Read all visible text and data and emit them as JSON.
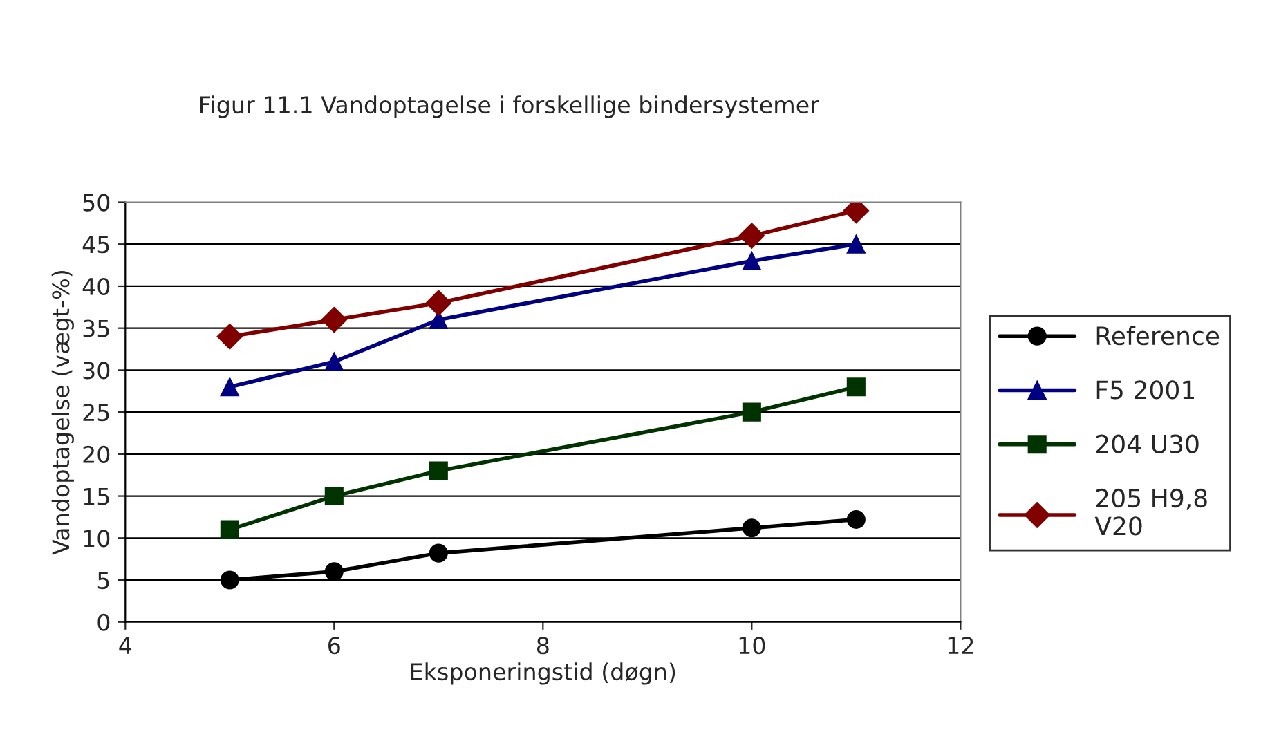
{
  "chart_data": {
    "type": "line",
    "title": "Figur 11.1 Vandoptagelse i forskellige bindersystemer",
    "xlabel": "Eksponeringstid (døgn)",
    "ylabel": "Vandoptagelse (vægt-%)",
    "x": [
      5,
      6,
      7,
      10,
      11
    ],
    "series": [
      {
        "name": "Reference",
        "color": "#000000",
        "marker": "circle",
        "values": [
          5,
          6,
          8.2,
          11.2,
          12.2
        ]
      },
      {
        "name": "F5 2001",
        "color": "#000080",
        "marker": "triangle",
        "values": [
          28,
          31,
          36,
          43,
          45
        ]
      },
      {
        "name": "204 U30",
        "color": "#003300",
        "marker": "square",
        "values": [
          11,
          15,
          18,
          25,
          28
        ]
      },
      {
        "name": "205 H9,8\nV20",
        "color": "#800000",
        "marker": "diamond",
        "values": [
          34,
          36,
          38,
          46,
          49
        ]
      }
    ],
    "xlim": [
      4,
      12
    ],
    "xticks": [
      4,
      6,
      8,
      10,
      12
    ],
    "ylim": [
      0,
      50
    ],
    "yticks": [
      0,
      5,
      10,
      15,
      20,
      25,
      30,
      35,
      40,
      45,
      50
    ],
    "grid": "y",
    "legend": "right",
    "line_style": "solid"
  }
}
